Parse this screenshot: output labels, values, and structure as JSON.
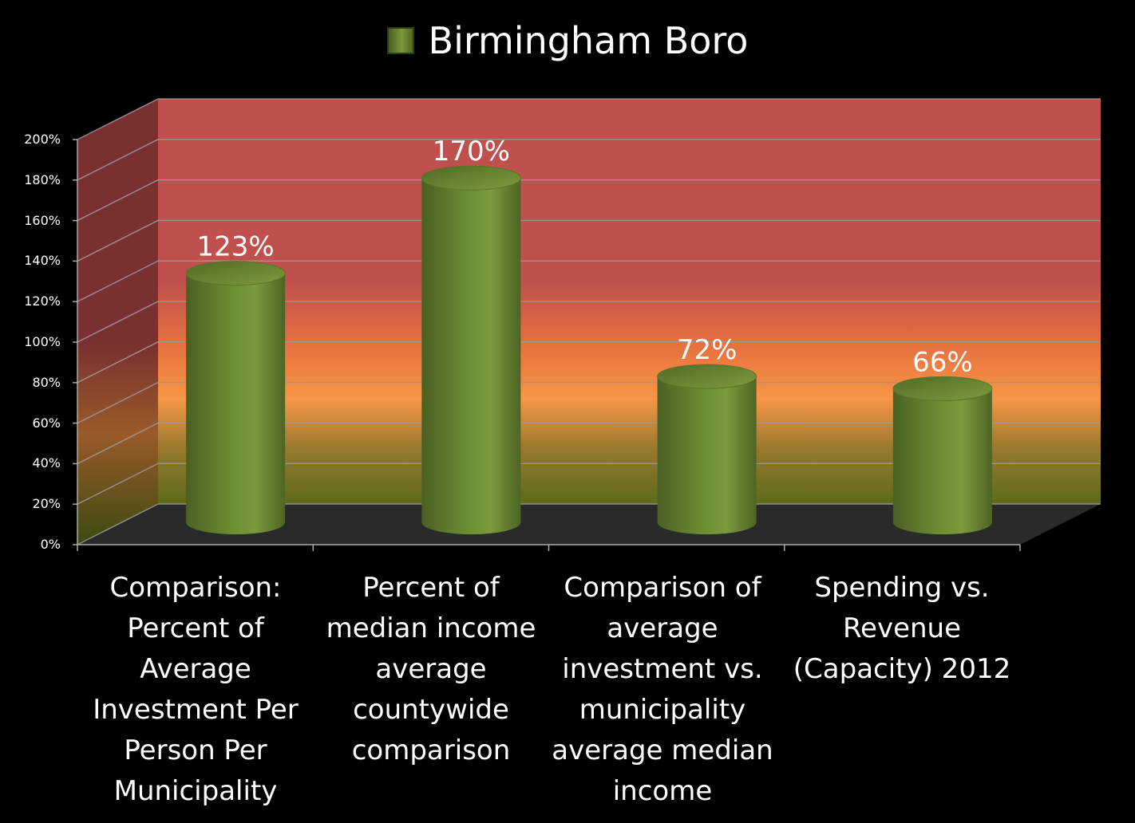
{
  "legend": {
    "label": "Birmingham Boro",
    "color": "#6a8a32"
  },
  "chart_data": {
    "type": "bar",
    "title": "",
    "xlabel": "",
    "ylabel": "",
    "categories": [
      "Comparison: Percent of Average Investment Per Person Per Municipality",
      "Percent of median income average countywide comparison",
      "Comparison of average investment vs. municipality average median income",
      "Spending vs. Revenue (Capacity) 2012"
    ],
    "series": [
      {
        "name": "Birmingham Boro",
        "values": [
          123,
          170,
          72,
          66
        ]
      }
    ],
    "data_labels": [
      "123%",
      "170%",
      "72%",
      "66%"
    ],
    "ylim": [
      0,
      200
    ],
    "yticks": [
      "0%",
      "20%",
      "40%",
      "60%",
      "80%",
      "100%",
      "120%",
      "140%",
      "160%",
      "180%",
      "200%"
    ],
    "grid": true,
    "legend_position": "top",
    "background_colors": {
      "high": "#c0504d",
      "mid": "#f79646",
      "low": "#6b7a1e",
      "floor": "#2a2a2a"
    },
    "bar_color": "#6a8a32"
  }
}
